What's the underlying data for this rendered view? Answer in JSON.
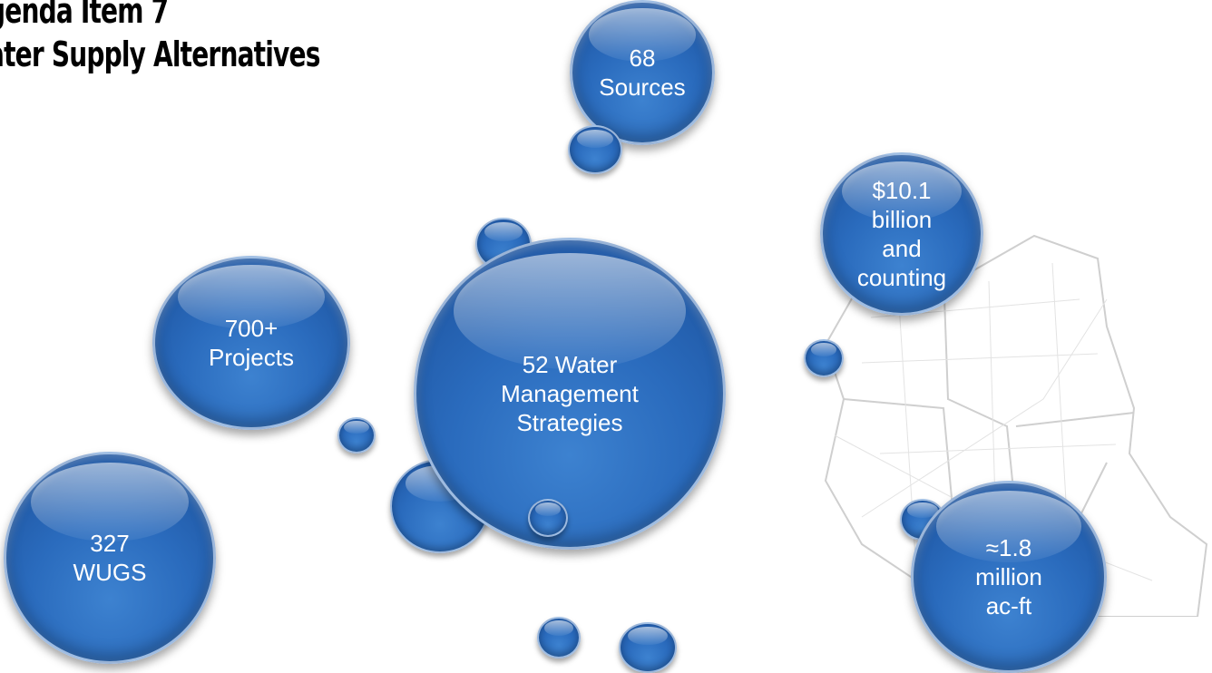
{
  "title": {
    "line1": "genda Item 7",
    "line2": "ater Supply Alternatives"
  },
  "bubbles": {
    "sources": "68\nSources",
    "cost": "$10.1\nbillion\nand\ncounting",
    "projects": "700+\nProjects",
    "strategies": "52 Water\nManagement\nStrategies",
    "wugs": "327\nWUGS",
    "volume": "≈1.8\nmillion\nac-ft"
  }
}
